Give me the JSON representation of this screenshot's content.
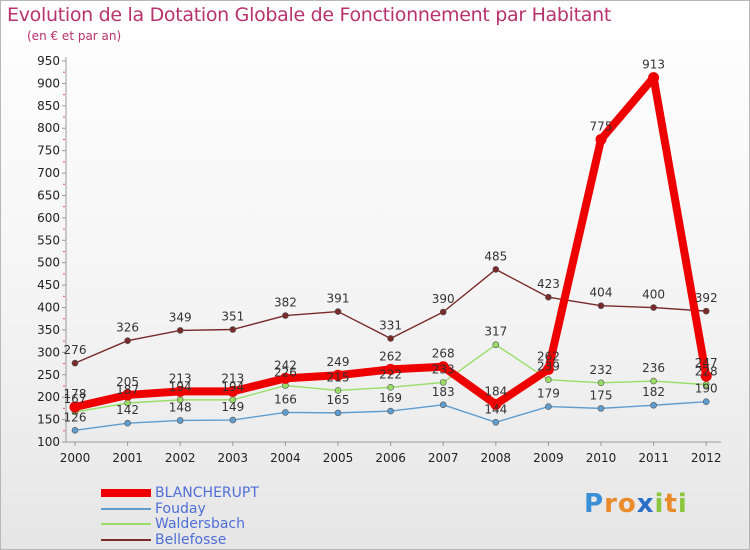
{
  "chart_data": {
    "type": "line",
    "title": "Evolution de la Dotation Globale de Fonctionnement par Habitant",
    "subtitle": "(en € et par an)",
    "xlabel": "",
    "ylabel": "",
    "ylim": [
      100,
      950
    ],
    "yticks": [
      100,
      150,
      200,
      250,
      300,
      350,
      400,
      450,
      500,
      550,
      600,
      650,
      700,
      750,
      800,
      850,
      900,
      950
    ],
    "categories": [
      "2000",
      "2001",
      "2002",
      "2003",
      "2004",
      "2005",
      "2006",
      "2007",
      "2008",
      "2009",
      "2010",
      "2011",
      "2012"
    ],
    "grid": false,
    "legend_position": "bottom-left",
    "series": [
      {
        "name": "Bellefosse",
        "color": "#7a2a2a",
        "values": [
          276,
          326,
          349,
          351,
          382,
          391,
          331,
          390,
          485,
          423,
          404,
          400,
          392
        ],
        "style": "thin"
      },
      {
        "name": "Waldersbach",
        "color": "#99dd66",
        "values": [
          167,
          187,
          194,
          194,
          226,
          215,
          222,
          233,
          317,
          239,
          232,
          236,
          228
        ],
        "style": "thin"
      },
      {
        "name": "Fouday",
        "color": "#5f9dcf",
        "values": [
          126,
          142,
          148,
          149,
          166,
          165,
          169,
          183,
          144,
          179,
          175,
          182,
          190
        ],
        "style": "thin"
      },
      {
        "name": "BLANCHERUPT",
        "color": "#ee0000",
        "values": [
          178,
          205,
          213,
          213,
          242,
          249,
          262,
          268,
          184,
          262,
          775,
          913,
          247
        ],
        "style": "thick"
      }
    ],
    "labels": {
      "Bellefosse": [
        "276",
        "326",
        "349",
        "351",
        "382",
        "391",
        "331",
        "390",
        "485",
        "423",
        "404",
        "400",
        "392"
      ],
      "Waldersbach": [
        "167",
        "187",
        "194",
        "194",
        "226",
        "215",
        "222",
        "233",
        "317",
        "239",
        "232",
        "236",
        "228"
      ],
      "Fouday": [
        "126",
        "142",
        "148",
        "149",
        "166",
        "165",
        "169",
        "183",
        "144",
        "179",
        "175",
        "182",
        "190"
      ],
      "BLANCHERUPT": [
        "178",
        "205",
        "213",
        "213",
        "242",
        "249",
        "262",
        "268",
        "184",
        "262",
        "775",
        "913",
        "247"
      ]
    }
  },
  "legend": {
    "items": [
      {
        "label": "BLANCHERUPT",
        "color": "#ee0000",
        "label_color": "#4f6fd8"
      },
      {
        "label": "Fouday",
        "color": "#5f9dcf",
        "label_color": "#4f6fd8"
      },
      {
        "label": "Waldersbach",
        "color": "#99dd66",
        "label_color": "#4f6fd8"
      },
      {
        "label": "Bellefosse",
        "color": "#7a2a2a",
        "label_color": "#4f6fd8"
      }
    ]
  },
  "logo": {
    "letters": [
      "P",
      "r",
      "o",
      "x",
      "i",
      "t",
      "i"
    ],
    "colors": [
      "#3a8fd6",
      "#e98b2a",
      "#e98b2a",
      "#2a6fc7",
      "#8cc63f",
      "#e98b2a",
      "#8cc63f"
    ]
  }
}
